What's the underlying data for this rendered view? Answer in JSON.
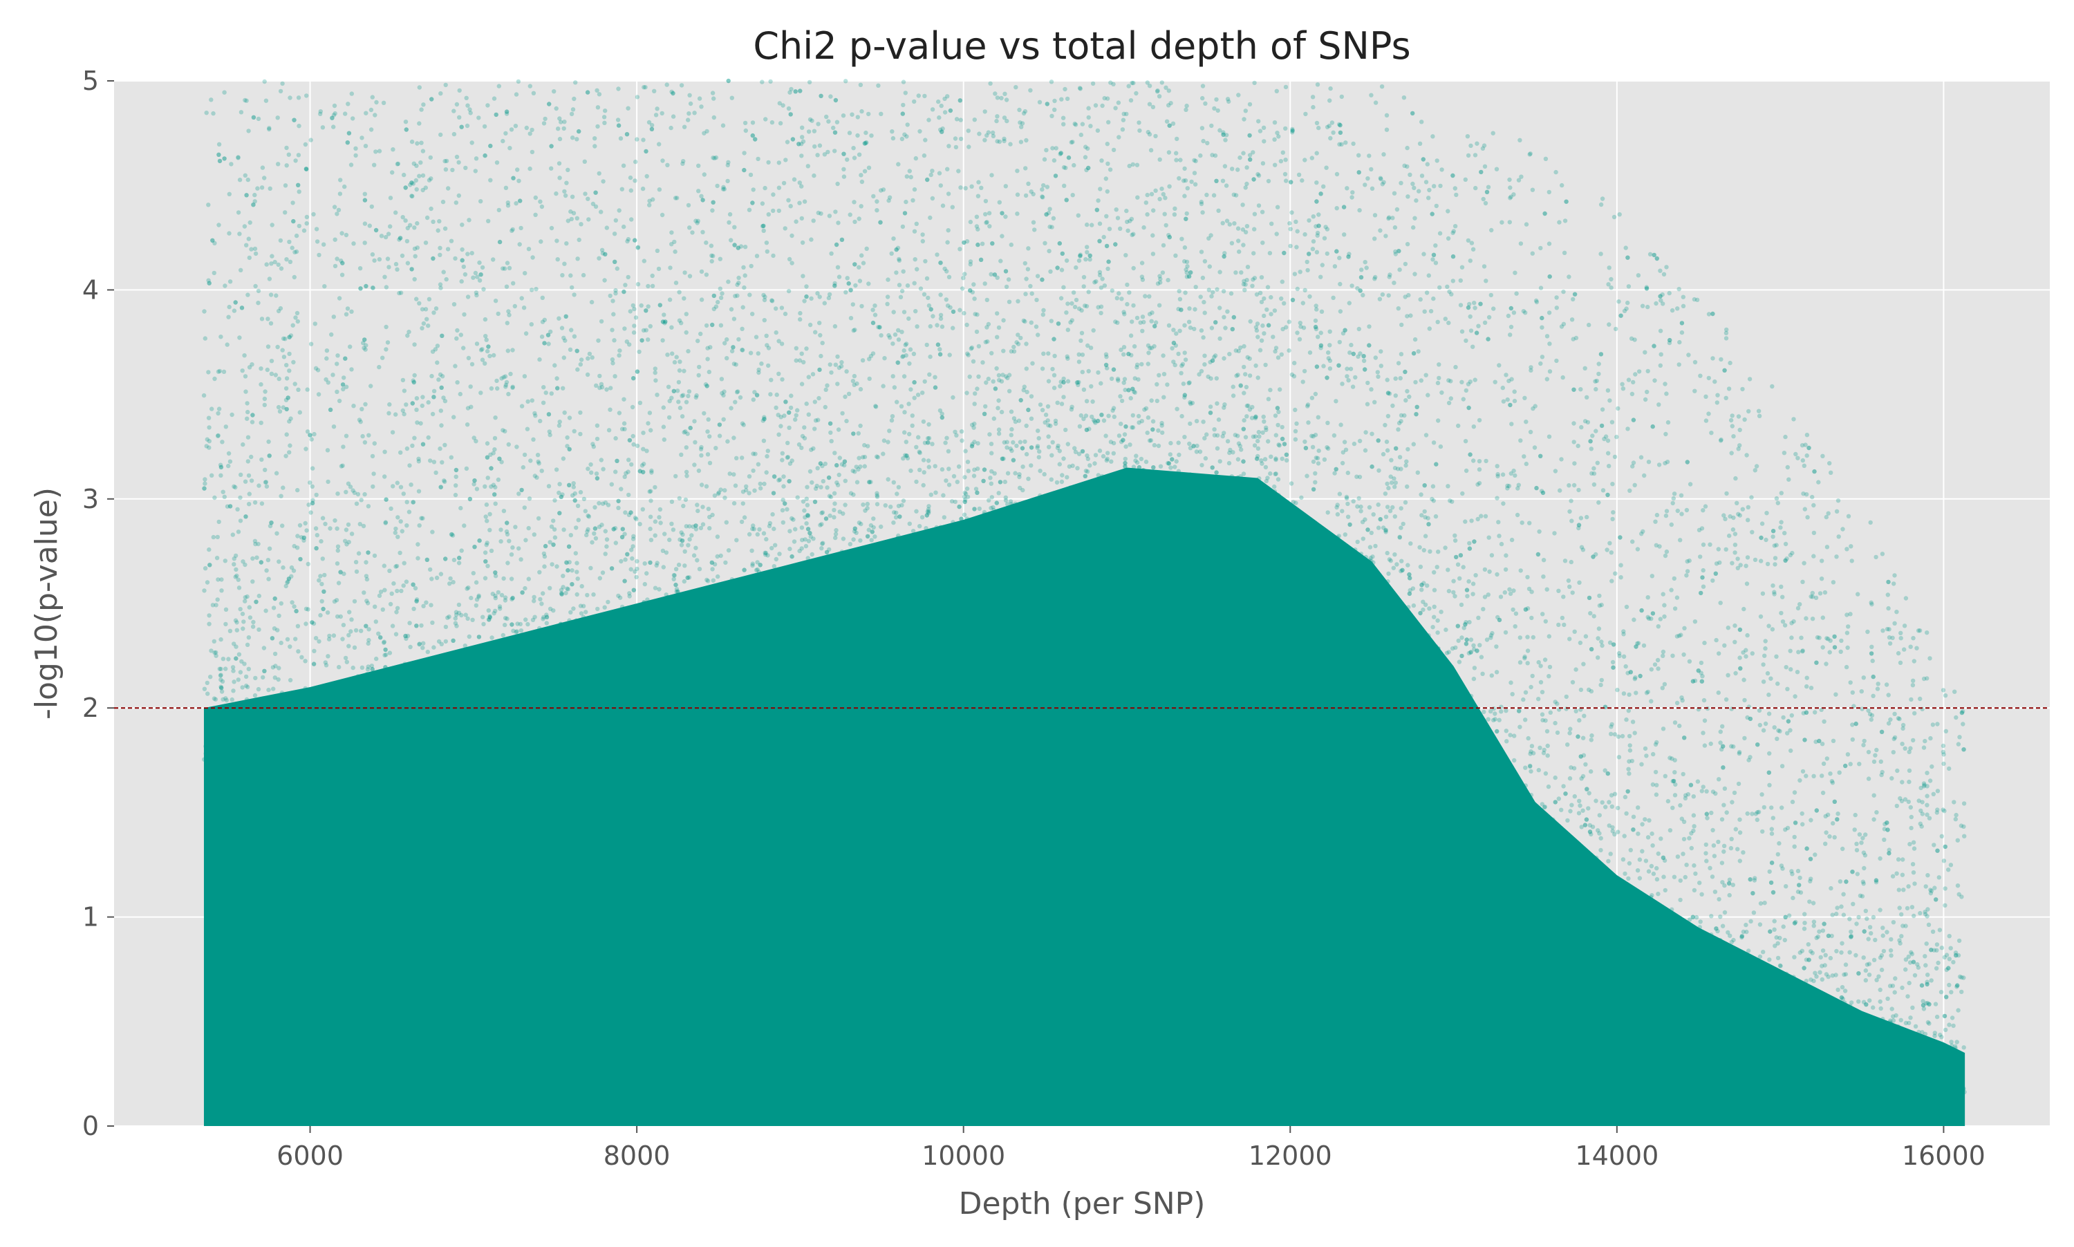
{
  "chart_data": {
    "type": "scatter",
    "title": "Chi2 p-value vs total depth of SNPs",
    "xlabel": "Depth (per SNP)",
    "ylabel": "-log10(p-value)",
    "xlim": [
      4800,
      16650
    ],
    "ylim": [
      0,
      5
    ],
    "x_ticks": [
      6000,
      8000,
      10000,
      12000,
      14000,
      16000
    ],
    "x_tick_labels": [
      "6000",
      "8000",
      "10000",
      "12000",
      "14000",
      "16000"
    ],
    "y_ticks": [
      0,
      1,
      2,
      3,
      4,
      5
    ],
    "y_tick_labels": [
      "0",
      "1",
      "2",
      "3",
      "4",
      "5"
    ],
    "grid": true,
    "threshold_line": {
      "y": 2,
      "style": "dashed",
      "color": "#8b0000"
    },
    "series": [
      {
        "point_color": "#009688",
        "x_range": [
          5350,
          16130
        ],
        "density_profile": {
          "x": [
            5350,
            6000,
            7000,
            8000,
            9000,
            10000,
            11000,
            11800,
            12500,
            13000,
            13500,
            14000,
            14500,
            15000,
            15500,
            16000,
            16130
          ],
          "solid_to_y": [
            2.0,
            2.1,
            2.3,
            2.5,
            2.7,
            2.9,
            3.15,
            3.1,
            2.7,
            2.2,
            1.55,
            1.2,
            0.95,
            0.75,
            0.55,
            0.4,
            0.35
          ],
          "sparse_to_y": [
            5.0,
            5.0,
            5.0,
            5.0,
            5.0,
            5.0,
            5.0,
            5.0,
            5.0,
            4.8,
            4.7,
            4.4,
            4.0,
            3.5,
            3.0,
            2.2,
            2.0
          ]
        }
      }
    ]
  },
  "colors": {
    "plot_background": "#e5e5e5",
    "grid": "#ffffff",
    "text": "#555555",
    "title": "#222222"
  }
}
